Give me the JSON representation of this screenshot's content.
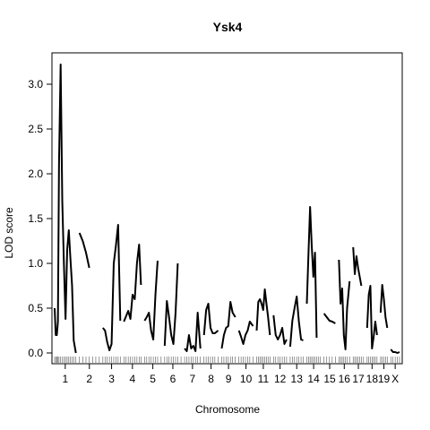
{
  "chart_data": {
    "type": "line",
    "title": "Ysk4",
    "xlabel": "Chromosome",
    "ylabel": "LOD score",
    "ylim": [
      -0.12,
      3.35
    ],
    "yticks": [
      0.0,
      0.5,
      1.0,
      1.5,
      2.0,
      2.5,
      3.0
    ],
    "ytick_labels": [
      "0.0",
      "0.5",
      "1.0",
      "1.5",
      "2.0",
      "2.5",
      "3.0"
    ],
    "grid": false,
    "legend": "none",
    "line_color": "#000000",
    "chromosomes": [
      {
        "label": "1",
        "length": 195,
        "pos": [
          0,
          10,
          20,
          30,
          40,
          55,
          70,
          85,
          100,
          115,
          130,
          145,
          160,
          175,
          195
        ],
        "lod": [
          0.5,
          0.2,
          0.2,
          0.35,
          2.1,
          3.22,
          1.7,
          1.0,
          0.38,
          1.15,
          1.37,
          1.05,
          0.75,
          0.14,
          0.0
        ]
      },
      {
        "label": "2",
        "length": 182,
        "pos": [
          0,
          30,
          60,
          90,
          120,
          150,
          182
        ],
        "lod": [
          1.34,
          1.25,
          1.12,
          0.95,
          null,
          null,
          null
        ]
      },
      {
        "label": "3",
        "length": 160,
        "pos": [
          0,
          20,
          40,
          60,
          80,
          100,
          120,
          140,
          160
        ],
        "lod": [
          0.28,
          0.25,
          0.12,
          0.03,
          0.1,
          1.0,
          1.2,
          1.43,
          0.36
        ]
      },
      {
        "label": "4",
        "length": 157,
        "pos": [
          0,
          20,
          40,
          60,
          80,
          100,
          120,
          140,
          157
        ],
        "lod": [
          0.35,
          0.41,
          0.47,
          0.38,
          0.65,
          0.6,
          1.0,
          1.21,
          0.76
        ]
      },
      {
        "label": "5",
        "length": 152,
        "pos": [
          0,
          20,
          40,
          60,
          80,
          100,
          120,
          152
        ],
        "lod": [
          0.36,
          0.4,
          0.45,
          0.25,
          0.15,
          0.65,
          1.03,
          null
        ]
      },
      {
        "label": "6",
        "length": 150,
        "pos": [
          0,
          20,
          40,
          60,
          80,
          100,
          120,
          150
        ],
        "lod": [
          0.08,
          0.58,
          0.4,
          0.2,
          0.1,
          0.45,
          1.0,
          null
        ]
      },
      {
        "label": "7",
        "length": 145,
        "pos": [
          0,
          20,
          40,
          60,
          80,
          100,
          120,
          145
        ],
        "lod": [
          0.05,
          0.02,
          0.2,
          0.05,
          0.08,
          0.02,
          0.45,
          0.05
        ]
      },
      {
        "label": "8",
        "length": 130,
        "pos": [
          0,
          20,
          40,
          60,
          80,
          100,
          130
        ],
        "lod": [
          0.2,
          0.48,
          0.55,
          0.28,
          0.22,
          0.22,
          0.25
        ]
      },
      {
        "label": "9",
        "length": 125,
        "pos": [
          0,
          20,
          40,
          60,
          80,
          100,
          125
        ],
        "lod": [
          0.05,
          0.2,
          0.28,
          0.3,
          0.57,
          0.45,
          0.4
        ]
      },
      {
        "label": "10",
        "length": 130,
        "pos": [
          0,
          20,
          40,
          60,
          80,
          100,
          130
        ],
        "lod": [
          0.25,
          0.18,
          0.1,
          0.2,
          0.25,
          0.35,
          0.3
        ]
      },
      {
        "label": "11",
        "length": 122,
        "pos": [
          0,
          15,
          30,
          45,
          60,
          75,
          90,
          105,
          122
        ],
        "lod": [
          0.25,
          0.57,
          0.6,
          0.55,
          0.48,
          0.71,
          0.55,
          0.4,
          0.2
        ]
      },
      {
        "label": "12",
        "length": 120,
        "pos": [
          0,
          20,
          40,
          60,
          80,
          100,
          120
        ],
        "lod": [
          0.42,
          0.2,
          0.15,
          0.2,
          0.28,
          0.1,
          0.15
        ]
      },
      {
        "label": "13",
        "length": 120,
        "pos": [
          0,
          20,
          40,
          60,
          80,
          100,
          120
        ],
        "lod": [
          0.07,
          0.36,
          0.5,
          0.63,
          0.35,
          0.15,
          0.14
        ]
      },
      {
        "label": "14",
        "length": 125,
        "pos": [
          0,
          15,
          30,
          45,
          60,
          75,
          90,
          105,
          125
        ],
        "lod": [
          0.55,
          1.1,
          1.63,
          1.2,
          0.85,
          1.12,
          0.17,
          null,
          null
        ]
      },
      {
        "label": "15",
        "length": 104,
        "pos": [
          0,
          25,
          50,
          75,
          104
        ],
        "lod": [
          0.44,
          0.4,
          0.36,
          0.35,
          0.33
        ]
      },
      {
        "label": "16",
        "length": 98,
        "pos": [
          0,
          15,
          30,
          45,
          60,
          75,
          98
        ],
        "lod": [
          1.04,
          0.55,
          0.72,
          0.2,
          0.04,
          0.5,
          0.8
        ]
      },
      {
        "label": "17",
        "length": 95,
        "pos": [
          0,
          15,
          30,
          45,
          60,
          75,
          95
        ],
        "lod": [
          1.18,
          0.88,
          1.08,
          0.95,
          0.85,
          0.75,
          null
        ]
      },
      {
        "label": "18",
        "length": 91,
        "pos": [
          0,
          15,
          30,
          45,
          60,
          75,
          91
        ],
        "lod": [
          0.28,
          0.65,
          0.75,
          0.05,
          0.18,
          0.35,
          0.2
        ]
      },
      {
        "label": "19",
        "length": 61,
        "pos": [
          0,
          15,
          30,
          45,
          61
        ],
        "lod": [
          0.45,
          0.76,
          0.6,
          0.4,
          0.28
        ]
      },
      {
        "label": "X",
        "length": 80,
        "pos": [
          0,
          20,
          40,
          60,
          80
        ],
        "lod": [
          0.04,
          0.01,
          0.01,
          0.0,
          0.01
        ]
      }
    ]
  }
}
